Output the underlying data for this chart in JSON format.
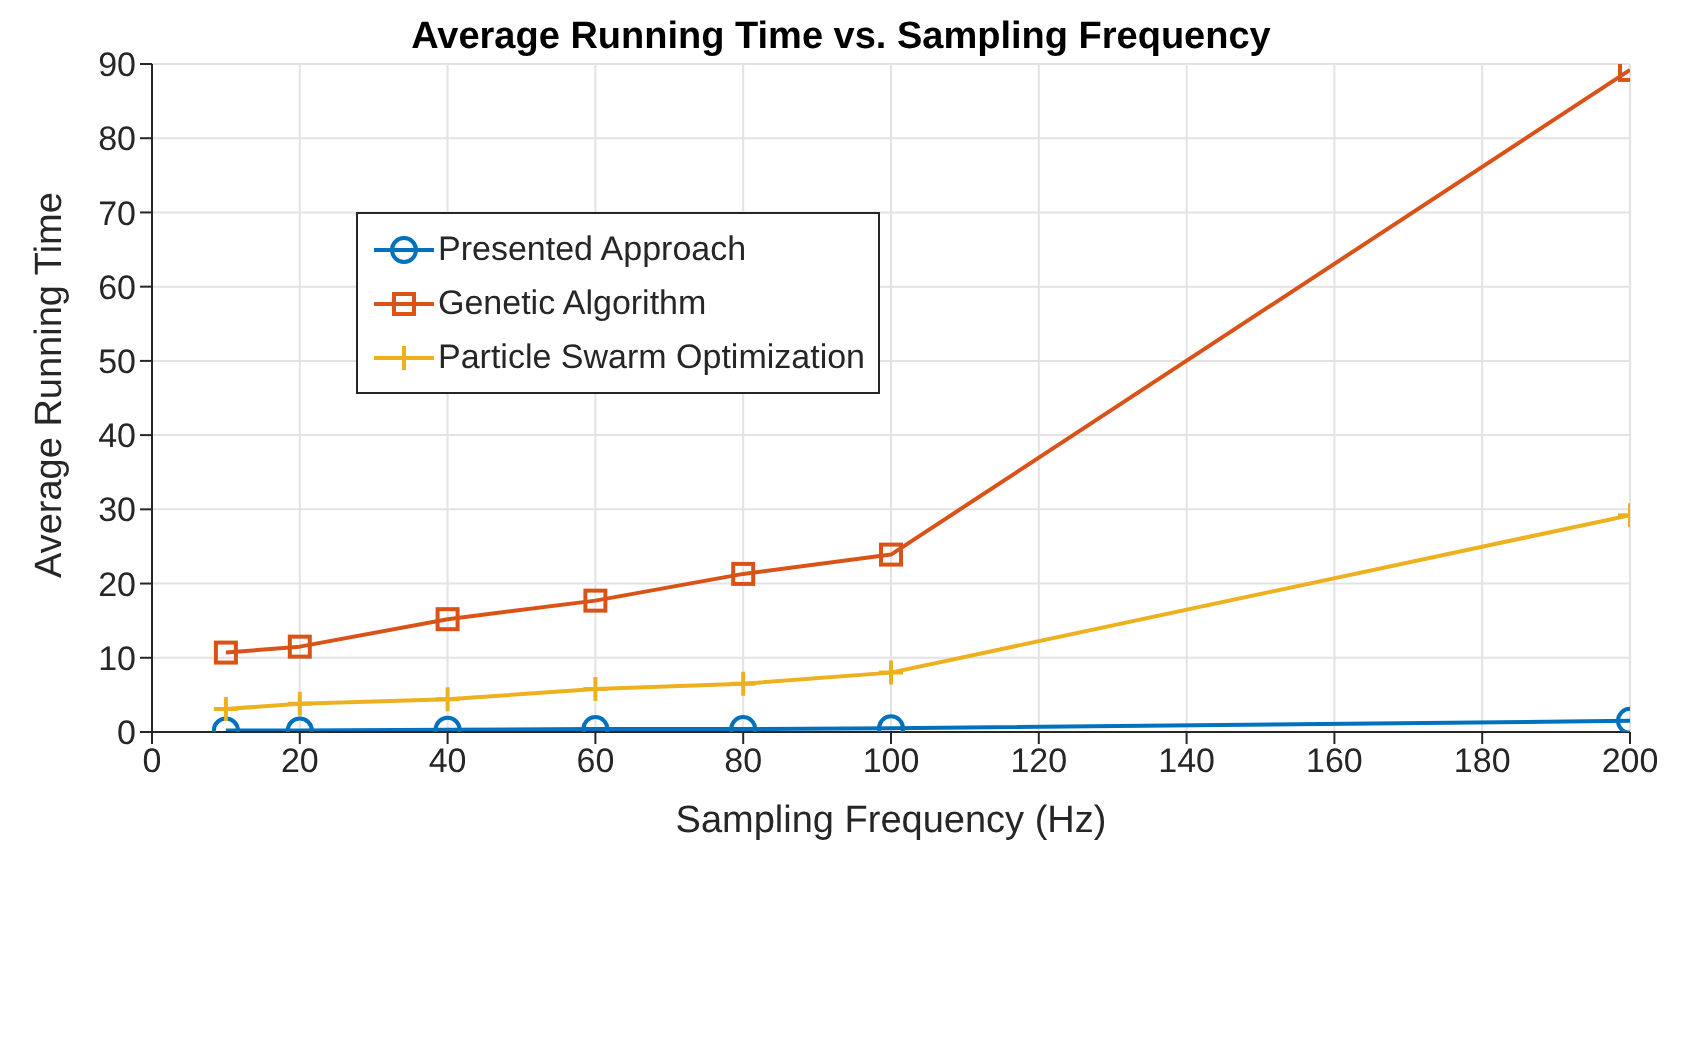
{
  "chart_data": {
    "type": "line",
    "title": "Average Running Time vs. Sampling Frequency",
    "xlabel": "Sampling Frequency (Hz)",
    "ylabel": "Average Running Time",
    "x": [
      10,
      20,
      40,
      60,
      80,
      100,
      200
    ],
    "series": [
      {
        "name": "Presented Approach",
        "color": "#0072bd",
        "marker": "circle",
        "values": [
          0.2,
          0.2,
          0.3,
          0.4,
          0.4,
          0.5,
          1.5
        ]
      },
      {
        "name": "Genetic Algorithm",
        "color": "#d95319",
        "marker": "square",
        "values": [
          10.7,
          11.5,
          15.2,
          17.7,
          21.3,
          23.9,
          89.2
        ]
      },
      {
        "name": "Particle Swarm Optimization",
        "color": "#edb120",
        "marker": "cross",
        "values": [
          3.1,
          3.8,
          4.4,
          5.8,
          6.5,
          8.0,
          29.2
        ]
      }
    ],
    "xlim": [
      0,
      200
    ],
    "xticks": [
      0,
      20,
      40,
      60,
      80,
      100,
      120,
      140,
      160,
      180,
      200
    ],
    "ylim": [
      0,
      90
    ],
    "yticks": [
      0,
      10,
      20,
      30,
      40,
      50,
      60,
      70,
      80,
      90
    ],
    "grid": true,
    "legend": "top left",
    "line_style": "solid"
  }
}
